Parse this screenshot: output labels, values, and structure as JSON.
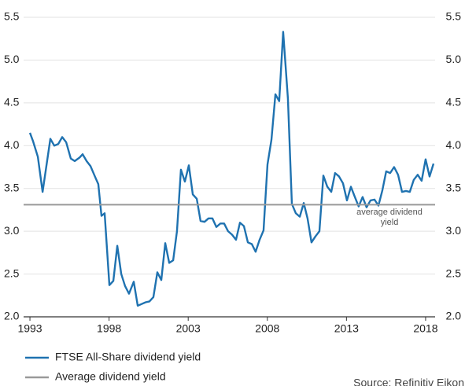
{
  "chart_data": {
    "type": "line",
    "x": [
      1993.0,
      1993.2,
      1993.5,
      1993.8,
      1994.29,
      1994.54,
      1994.79,
      1995.04,
      1995.29,
      1995.58,
      1995.83,
      1996.13,
      1996.33,
      1996.58,
      1996.83,
      1997.13,
      1997.32,
      1997.52,
      1997.72,
      1998.02,
      1998.27,
      1998.52,
      1998.77,
      1999.01,
      1999.26,
      1999.56,
      1999.81,
      2000.06,
      2000.31,
      2000.55,
      2000.8,
      2001.05,
      2001.3,
      2001.55,
      2001.8,
      2002.05,
      2002.29,
      2002.54,
      2002.79,
      2003.04,
      2003.29,
      2003.54,
      2003.78,
      2004.03,
      2004.28,
      2004.53,
      2004.78,
      2005.03,
      2005.27,
      2005.52,
      2005.77,
      2006.02,
      2006.27,
      2006.52,
      2006.77,
      2007.02,
      2007.26,
      2007.51,
      2007.76,
      2008.01,
      2008.26,
      2008.51,
      2008.75,
      2009.0,
      2009.3,
      2009.55,
      2009.8,
      2010.05,
      2010.3,
      2010.54,
      2010.79,
      2011.04,
      2011.29,
      2011.54,
      2011.79,
      2012.04,
      2012.28,
      2012.53,
      2012.78,
      2013.03,
      2013.28,
      2013.53,
      2013.77,
      2014.02,
      2014.27,
      2014.52,
      2014.77,
      2015.02,
      2015.27,
      2015.51,
      2015.76,
      2016.01,
      2016.26,
      2016.51,
      2016.76,
      2017.0,
      2017.25,
      2017.5,
      2017.75,
      2018.0,
      2018.25,
      2018.5
    ],
    "series": [
      {
        "name": "FTSE All-Share dividend yield",
        "color": "#1f72b0",
        "values": [
          4.15,
          4.05,
          3.87,
          3.46,
          4.08,
          4.0,
          4.02,
          4.1,
          4.04,
          3.85,
          3.82,
          3.86,
          3.9,
          3.82,
          3.76,
          3.63,
          3.55,
          3.18,
          3.21,
          2.37,
          2.42,
          2.83,
          2.5,
          2.36,
          2.27,
          2.41,
          2.13,
          2.15,
          2.17,
          2.18,
          2.23,
          2.52,
          2.43,
          2.86,
          2.63,
          2.66,
          3.0,
          3.72,
          3.58,
          3.77,
          3.43,
          3.38,
          3.12,
          3.11,
          3.15,
          3.15,
          3.05,
          3.09,
          3.09,
          3.0,
          2.96,
          2.9,
          3.1,
          3.06,
          2.87,
          2.85,
          2.76,
          2.9,
          3.01,
          3.78,
          4.07,
          4.6,
          4.52,
          5.33,
          4.55,
          3.32,
          3.21,
          3.17,
          3.33,
          3.15,
          2.87,
          2.94,
          3.0,
          3.65,
          3.52,
          3.46,
          3.68,
          3.64,
          3.56,
          3.36,
          3.52,
          3.4,
          3.29,
          3.4,
          3.28,
          3.36,
          3.37,
          3.3,
          3.48,
          3.7,
          3.68,
          3.75,
          3.66,
          3.46,
          3.47,
          3.46,
          3.6,
          3.66,
          3.59,
          3.84,
          3.64,
          3.79
        ]
      },
      {
        "name": "Average dividend yield",
        "color": "#999999",
        "average": 3.31
      }
    ],
    "annotation": [
      "average dividend",
      "yield"
    ],
    "source": "Source: Refinitiv Eikon",
    "xlim": [
      1992.6,
      2018.6
    ],
    "xticks": [
      1993,
      1998,
      2003,
      2008,
      2013,
      2018
    ],
    "ylim": [
      2.0,
      5.5
    ],
    "yticks": [
      {
        "value": 2.0,
        "label": "2.0"
      },
      2.5,
      {
        "value": 3.0,
        "label": "3.0"
      },
      3.5,
      {
        "value": 4.0,
        "label": "4.0"
      },
      4.5,
      {
        "value": 5.0,
        "label": "5.0"
      },
      5.5
    ],
    "y2lim": [
      2.0,
      5.5
    ],
    "y2ticks": [
      {
        "value": 2.0,
        "label": "2.0"
      },
      2.5,
      {
        "value": 3.0,
        "label": "3.0"
      },
      3.5,
      {
        "value": 4.0,
        "label": "4.0"
      },
      4.5,
      {
        "value": 5.0,
        "label": "5.0"
      },
      5.5
    ],
    "grid": true
  }
}
